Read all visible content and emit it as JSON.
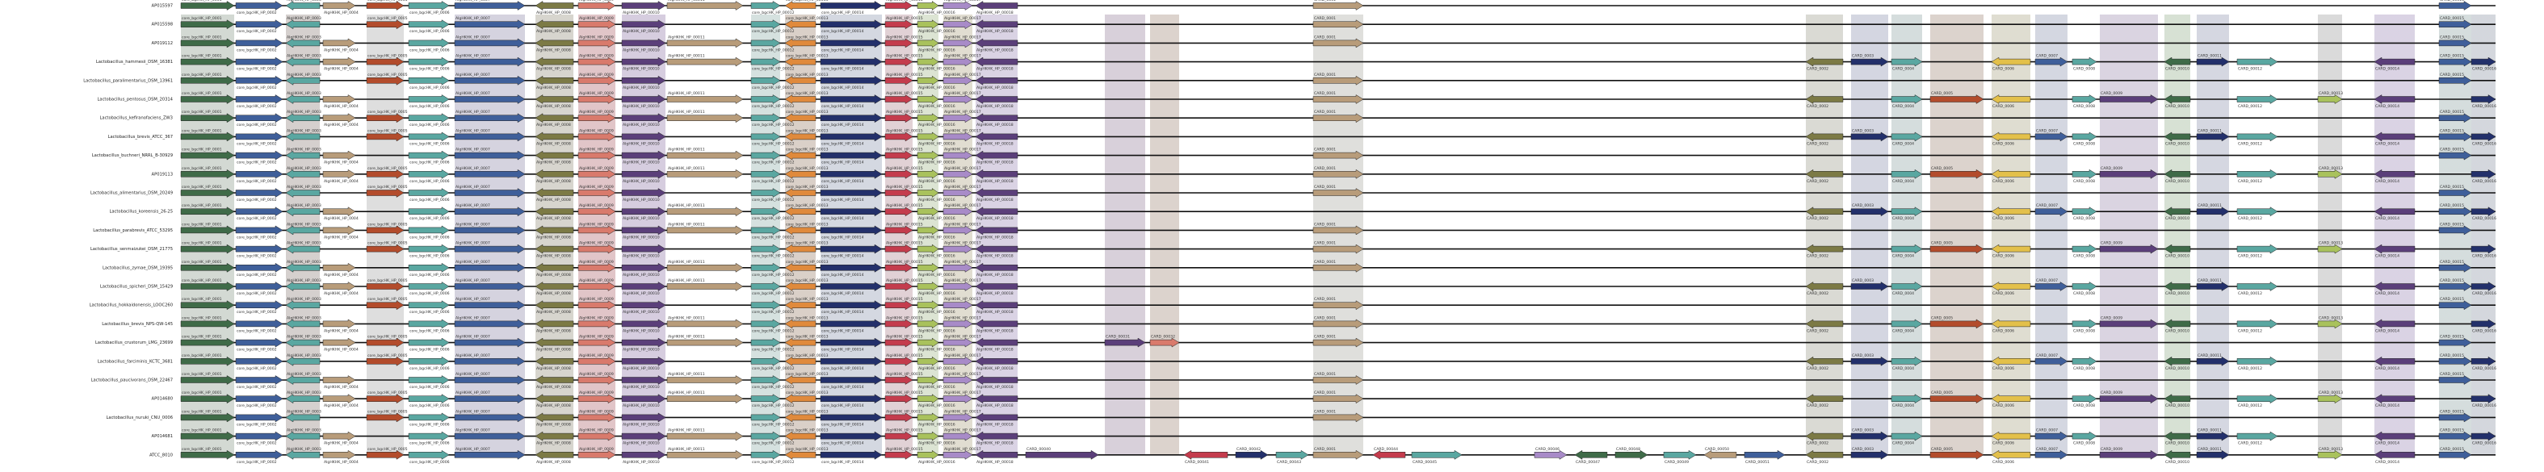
{
  "rows": [
    "AP015597",
    "AP015598",
    "AP019112",
    "Lactobacillus_hammesii_DSM_16381",
    "Lactobacillus_paralimentarius_DSM_13961",
    "Lactobacillus_pentosus_DSM_20314",
    "Lactobacillus_kefiranofaciens_ZW3",
    "Lactobacillus_brevis_ATCC_367",
    "Lactobacillus_buchneri_NRRL_B-30929",
    "AP019113",
    "Lactobacillus_alimentarius_DSM_20249",
    "Lactobacillus_koreensis_26-25",
    "Lactobacillus_parabrevis_ATCC_53295",
    "Lactobacillus_senmaizukei_DSM_21775",
    "Lactobacillus_zymae_DSM_19395",
    "Lactobacillus_spicheri_DSM_15429",
    "Lactobacillus_hokkaidonensis_LOOC260",
    "Lactobacillus_brevis_NPS-QW-145",
    "Lactobacillus_crustorum_LMG_23699",
    "Lactobacillus_farciminis_KCTC_3681",
    "Lactobacillus_paucivorans_DSM_22467",
    "AP014680",
    "Lactobacillus_nuruki_CNU_0006",
    "AP014681",
    "ATCC_8010"
  ],
  "labels": {
    "core": "core_bgcHK_HP_000",
    "dom": "AlgHKHK_HP_000",
    "uniq": "UNIQUE_000",
    "acc": "CARD_000"
  },
  "colors": {
    "green": "#3f6b48",
    "blue": "#3f5f9a",
    "teal": "#5aa7a1",
    "tan": "#b89c7a",
    "salmon": "#d97a6c",
    "purple": "#5b3f7a",
    "olive": "#7c7a45",
    "orange": "#e08a3c",
    "navy": "#23306b",
    "red": "#c43c4d",
    "lime": "#a9c25c",
    "yellow": "#e3c04a",
    "brick": "#b34c2c",
    "lavender": "#a88bc8"
  }
}
